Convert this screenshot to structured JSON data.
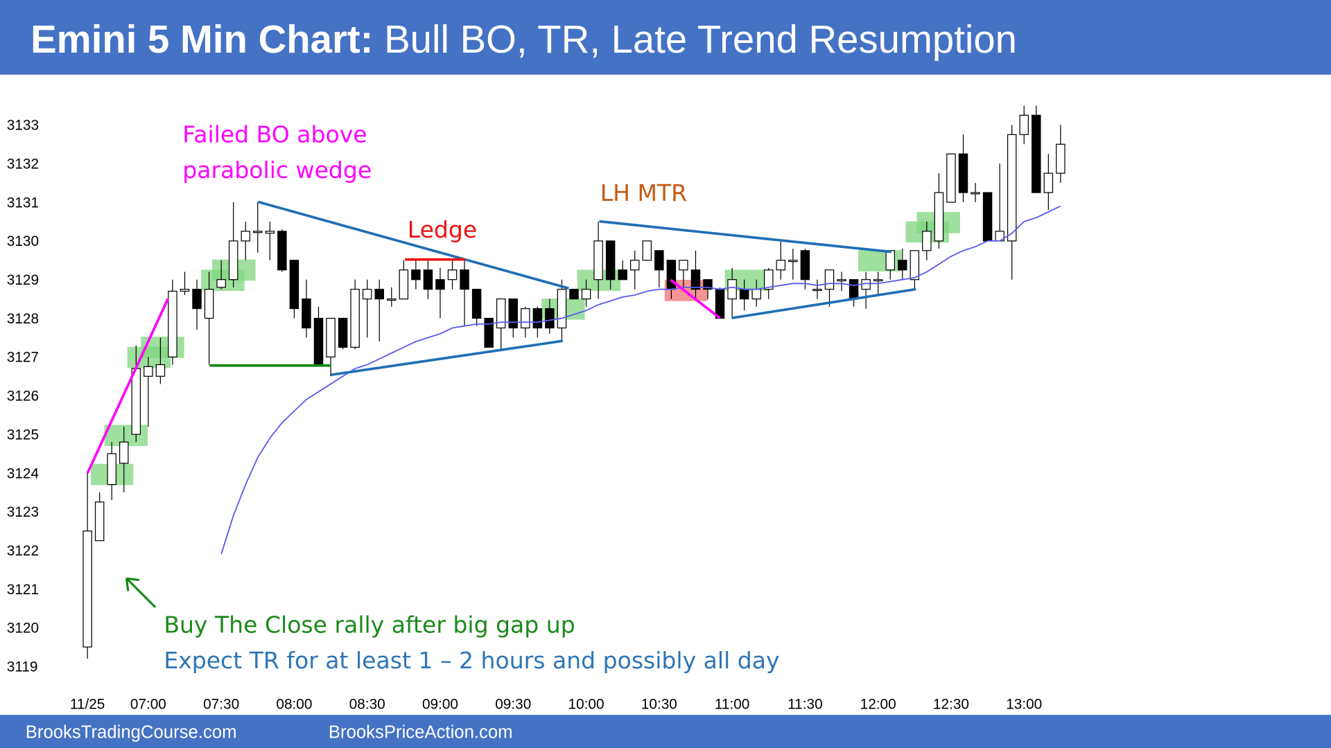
{
  "header": {
    "title_bold": "Emini 5 Min Chart:",
    "title_rest": "Bull BO, TR, Late Trend Resumption"
  },
  "footer": {
    "left": "BrooksTradingCourse.com",
    "right": "BrooksPriceAction.com"
  },
  "chart_data": {
    "type": "candlestick",
    "categories": [
      "11/25",
      null,
      null,
      null,
      null,
      "07:00",
      null,
      null,
      null,
      null,
      null,
      "07:30",
      null,
      null,
      null,
      null,
      null,
      "08:00",
      null,
      null,
      null,
      null,
      null,
      "08:30",
      null,
      null,
      null,
      null,
      null,
      "09:00",
      null,
      null,
      null,
      null,
      null,
      "09:30",
      null,
      null,
      null,
      null,
      null,
      "10:00",
      null,
      null,
      null,
      null,
      null,
      "10:30",
      null,
      null,
      null,
      null,
      null,
      "11:00",
      null,
      null,
      null,
      null,
      null,
      "11:30",
      null,
      null,
      null,
      null,
      null,
      "12:00",
      null,
      null,
      null,
      null,
      null,
      "12:30",
      null,
      null,
      null,
      null,
      null,
      "13:00",
      null,
      null,
      null
    ],
    "open": [
      3119.5,
      3122.25,
      3123.7,
      3124.25,
      3125,
      3126.5,
      3126.5,
      3127,
      3128.7,
      3128.75,
      3128,
      3128.8,
      3129,
      3130,
      3130.25,
      3130.2,
      3130.25,
      3129.5,
      3128.5,
      3128,
      3127,
      3128,
      3127.25,
      3128.5,
      3128.75,
      3128.5,
      3128.5,
      3129.25,
      3129.25,
      3129,
      3129,
      3129.25,
      3128.75,
      3128,
      3127.75,
      3128.5,
      3127.75,
      3128.25,
      3128.25,
      3127.75,
      3128.75,
      3128.5,
      3129,
      3130,
      3129.25,
      3129.25,
      3129.5,
      3129.75,
      3129.5,
      3129.25,
      3129.25,
      3129,
      3128.75,
      3128.5,
      3128.75,
      3128.5,
      3128.75,
      3129.25,
      3129.5,
      3129.75,
      3128.75,
      3128.75,
      3129,
      3129,
      3128.75,
      3129,
      3129.25,
      3129.5,
      3129,
      3129.75,
      3130,
      3131,
      3132.25,
      3131.25,
      3131.25,
      3130,
      3130,
      3132.75,
      3133.25,
      3131.25,
      3131.75
    ],
    "high": [
      3124,
      3123.5,
      3124.8,
      3125.2,
      3127.3,
      3127,
      3127.5,
      3129,
      3129.2,
      3129,
      3129.2,
      3129.5,
      3131,
      3130.5,
      3131,
      3130.5,
      3130.3,
      3129.5,
      3129,
      3128.3,
      3128,
      3128,
      3129,
      3129,
      3129,
      3128.8,
      3129.5,
      3129.5,
      3129.5,
      3129.3,
      3129.5,
      3129.5,
      3128.75,
      3128,
      3128.5,
      3128.5,
      3128.3,
      3128.3,
      3128.5,
      3129,
      3128.75,
      3129,
      3130.5,
      3130,
      3129.5,
      3129.75,
      3130,
      3129.75,
      3129.5,
      3129.5,
      3129.75,
      3129,
      3128.8,
      3129.3,
      3129,
      3129,
      3129.3,
      3130,
      3129.8,
      3129.8,
      3129,
      3129.25,
      3129.2,
      3129,
      3129.2,
      3129.2,
      3129.75,
      3129.8,
      3129.75,
      3130.5,
      3131.75,
      3132.25,
      3132.75,
      3131.5,
      3131.25,
      3132,
      3133,
      3133.5,
      3133.5,
      3132.25,
      3133
    ],
    "low": [
      3119.2,
      3122.25,
      3123.3,
      3123.5,
      3124.8,
      3125.2,
      3126.3,
      3126.8,
      3128.6,
      3127.7,
      3126.8,
      3128.75,
      3128.8,
      3129.5,
      3129.7,
      3129.5,
      3129.2,
      3128,
      3127.5,
      3126.8,
      3126.5,
      3127.2,
      3127.2,
      3127.5,
      3127.4,
      3128.3,
      3128.5,
      3128.75,
      3128.5,
      3128,
      3128.75,
      3127.8,
      3127.8,
      3127.25,
      3127.2,
      3127.5,
      3127.5,
      3127.5,
      3127.6,
      3127.4,
      3128.5,
      3128.3,
      3128.5,
      3128.75,
      3129,
      3128.75,
      3129.5,
      3128.8,
      3128.5,
      3128.75,
      3128.5,
      3128.5,
      3128,
      3128,
      3128.2,
      3128.3,
      3128.5,
      3129,
      3129,
      3128.75,
      3128.5,
      3128.3,
      3128.7,
      3128.3,
      3128.25,
      3128.6,
      3129,
      3129,
      3128.75,
      3129.5,
      3129.8,
      3131,
      3131,
      3131,
      3130,
      3130,
      3129,
      3132.5,
      3131.25,
      3130.8,
      3131.5
    ],
    "close": [
      3122.5,
      3123.25,
      3124.5,
      3124.8,
      3126.7,
      3126.75,
      3126.8,
      3128.7,
      3128.75,
      3128.25,
      3128.75,
      3129,
      3130,
      3130.25,
      3130.25,
      3130.25,
      3129.25,
      3128.25,
      3127.75,
      3126.8,
      3128,
      3127.25,
      3128.75,
      3128.75,
      3128.5,
      3128.5,
      3129.25,
      3129,
      3128.75,
      3128.75,
      3129.25,
      3128.75,
      3128,
      3127.25,
      3128.5,
      3127.75,
      3128.25,
      3127.75,
      3127.75,
      3128.75,
      3128.5,
      3128.75,
      3130,
      3129,
      3129,
      3129.5,
      3130,
      3129.25,
      3128.75,
      3129.5,
      3128.75,
      3128.75,
      3128,
      3129,
      3128.5,
      3128.75,
      3129.25,
      3129.5,
      3129.5,
      3129,
      3128.75,
      3129.25,
      3129,
      3128.5,
      3129,
      3129,
      3129.75,
      3129.25,
      3129.75,
      3130.25,
      3131.25,
      3132.25,
      3131.25,
      3131.25,
      3130,
      3130.25,
      3132.75,
      3133.25,
      3131.25,
      3131.75,
      3132.5
    ],
    "up_color": "#ffffff",
    "down_color": "#000000",
    "ma": {
      "color": "#5b5bf0",
      "values": [
        null,
        null,
        null,
        null,
        null,
        null,
        null,
        null,
        null,
        null,
        null,
        3121.9,
        3122.9,
        3123.7,
        3124.4,
        3124.9,
        3125.3,
        3125.6,
        3125.9,
        3126.1,
        3126.3,
        3126.5,
        3126.7,
        3126.8,
        3126.95,
        3127.1,
        3127.25,
        3127.4,
        3127.5,
        3127.6,
        3127.75,
        3127.8,
        3127.85,
        3127.85,
        3127.9,
        3127.9,
        3127.9,
        3127.9,
        3127.95,
        3128,
        3128.1,
        3128.2,
        3128.35,
        3128.45,
        3128.55,
        3128.6,
        3128.7,
        3128.75,
        3128.75,
        3128.8,
        3128.8,
        3128.8,
        3128.75,
        3128.8,
        3128.75,
        3128.75,
        3128.8,
        3128.85,
        3128.9,
        3128.9,
        3128.85,
        3128.9,
        3128.9,
        3128.85,
        3128.9,
        3128.9,
        3128.95,
        3129,
        3129.05,
        3129.2,
        3129.4,
        3129.6,
        3129.75,
        3129.85,
        3130,
        3130,
        3130.2,
        3130.5,
        3130.6,
        3130.75,
        3130.9
      ]
    },
    "ylim": [
      3117.7,
      3134.3
    ],
    "yticks": [
      3119,
      3120,
      3121,
      3122,
      3123,
      3124,
      3125,
      3126,
      3127,
      3128,
      3129,
      3130,
      3131,
      3132,
      3133
    ],
    "annotations": [
      "Failed BO above",
      "parabolic wedge",
      "Ledge",
      "LH MTR",
      "Buy The Close rally after big gap up",
      "Expect TR for at least 1 – 2 hours and possibly all day"
    ]
  }
}
